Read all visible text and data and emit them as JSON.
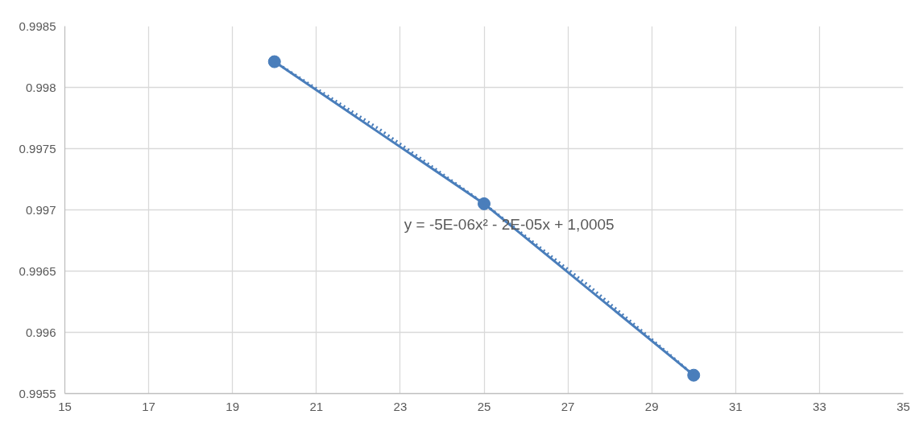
{
  "chart_data": {
    "type": "line",
    "series": [
      {
        "color": "#4a7ebb",
        "marker": "circle",
        "line_style": "solid",
        "x": [
          20,
          25,
          30
        ],
        "values": [
          0.99821,
          0.99705,
          0.99565
        ]
      },
      {
        "color": "#4a7ebb",
        "marker": "none",
        "line_style": "dotted",
        "x": [
          20,
          22.5,
          25,
          27.5,
          30
        ],
        "values": [
          0.99821,
          0.99766,
          0.99705,
          0.99638,
          0.99565
        ]
      }
    ],
    "xlim": [
      15,
      35
    ],
    "xticks": [
      15,
      17,
      19,
      21,
      23,
      25,
      27,
      29,
      31,
      33,
      35
    ],
    "ylim": [
      0.9955,
      0.9985
    ],
    "yticks": [
      0.9955,
      0.996,
      0.9965,
      0.997,
      0.9975,
      0.998,
      0.9985
    ],
    "grid": true,
    "annotations": [
      {
        "text": "y = -5E-06x² - 2E-05x + 1,0005",
        "x": 25.6,
        "y": 0.99688
      }
    ]
  }
}
